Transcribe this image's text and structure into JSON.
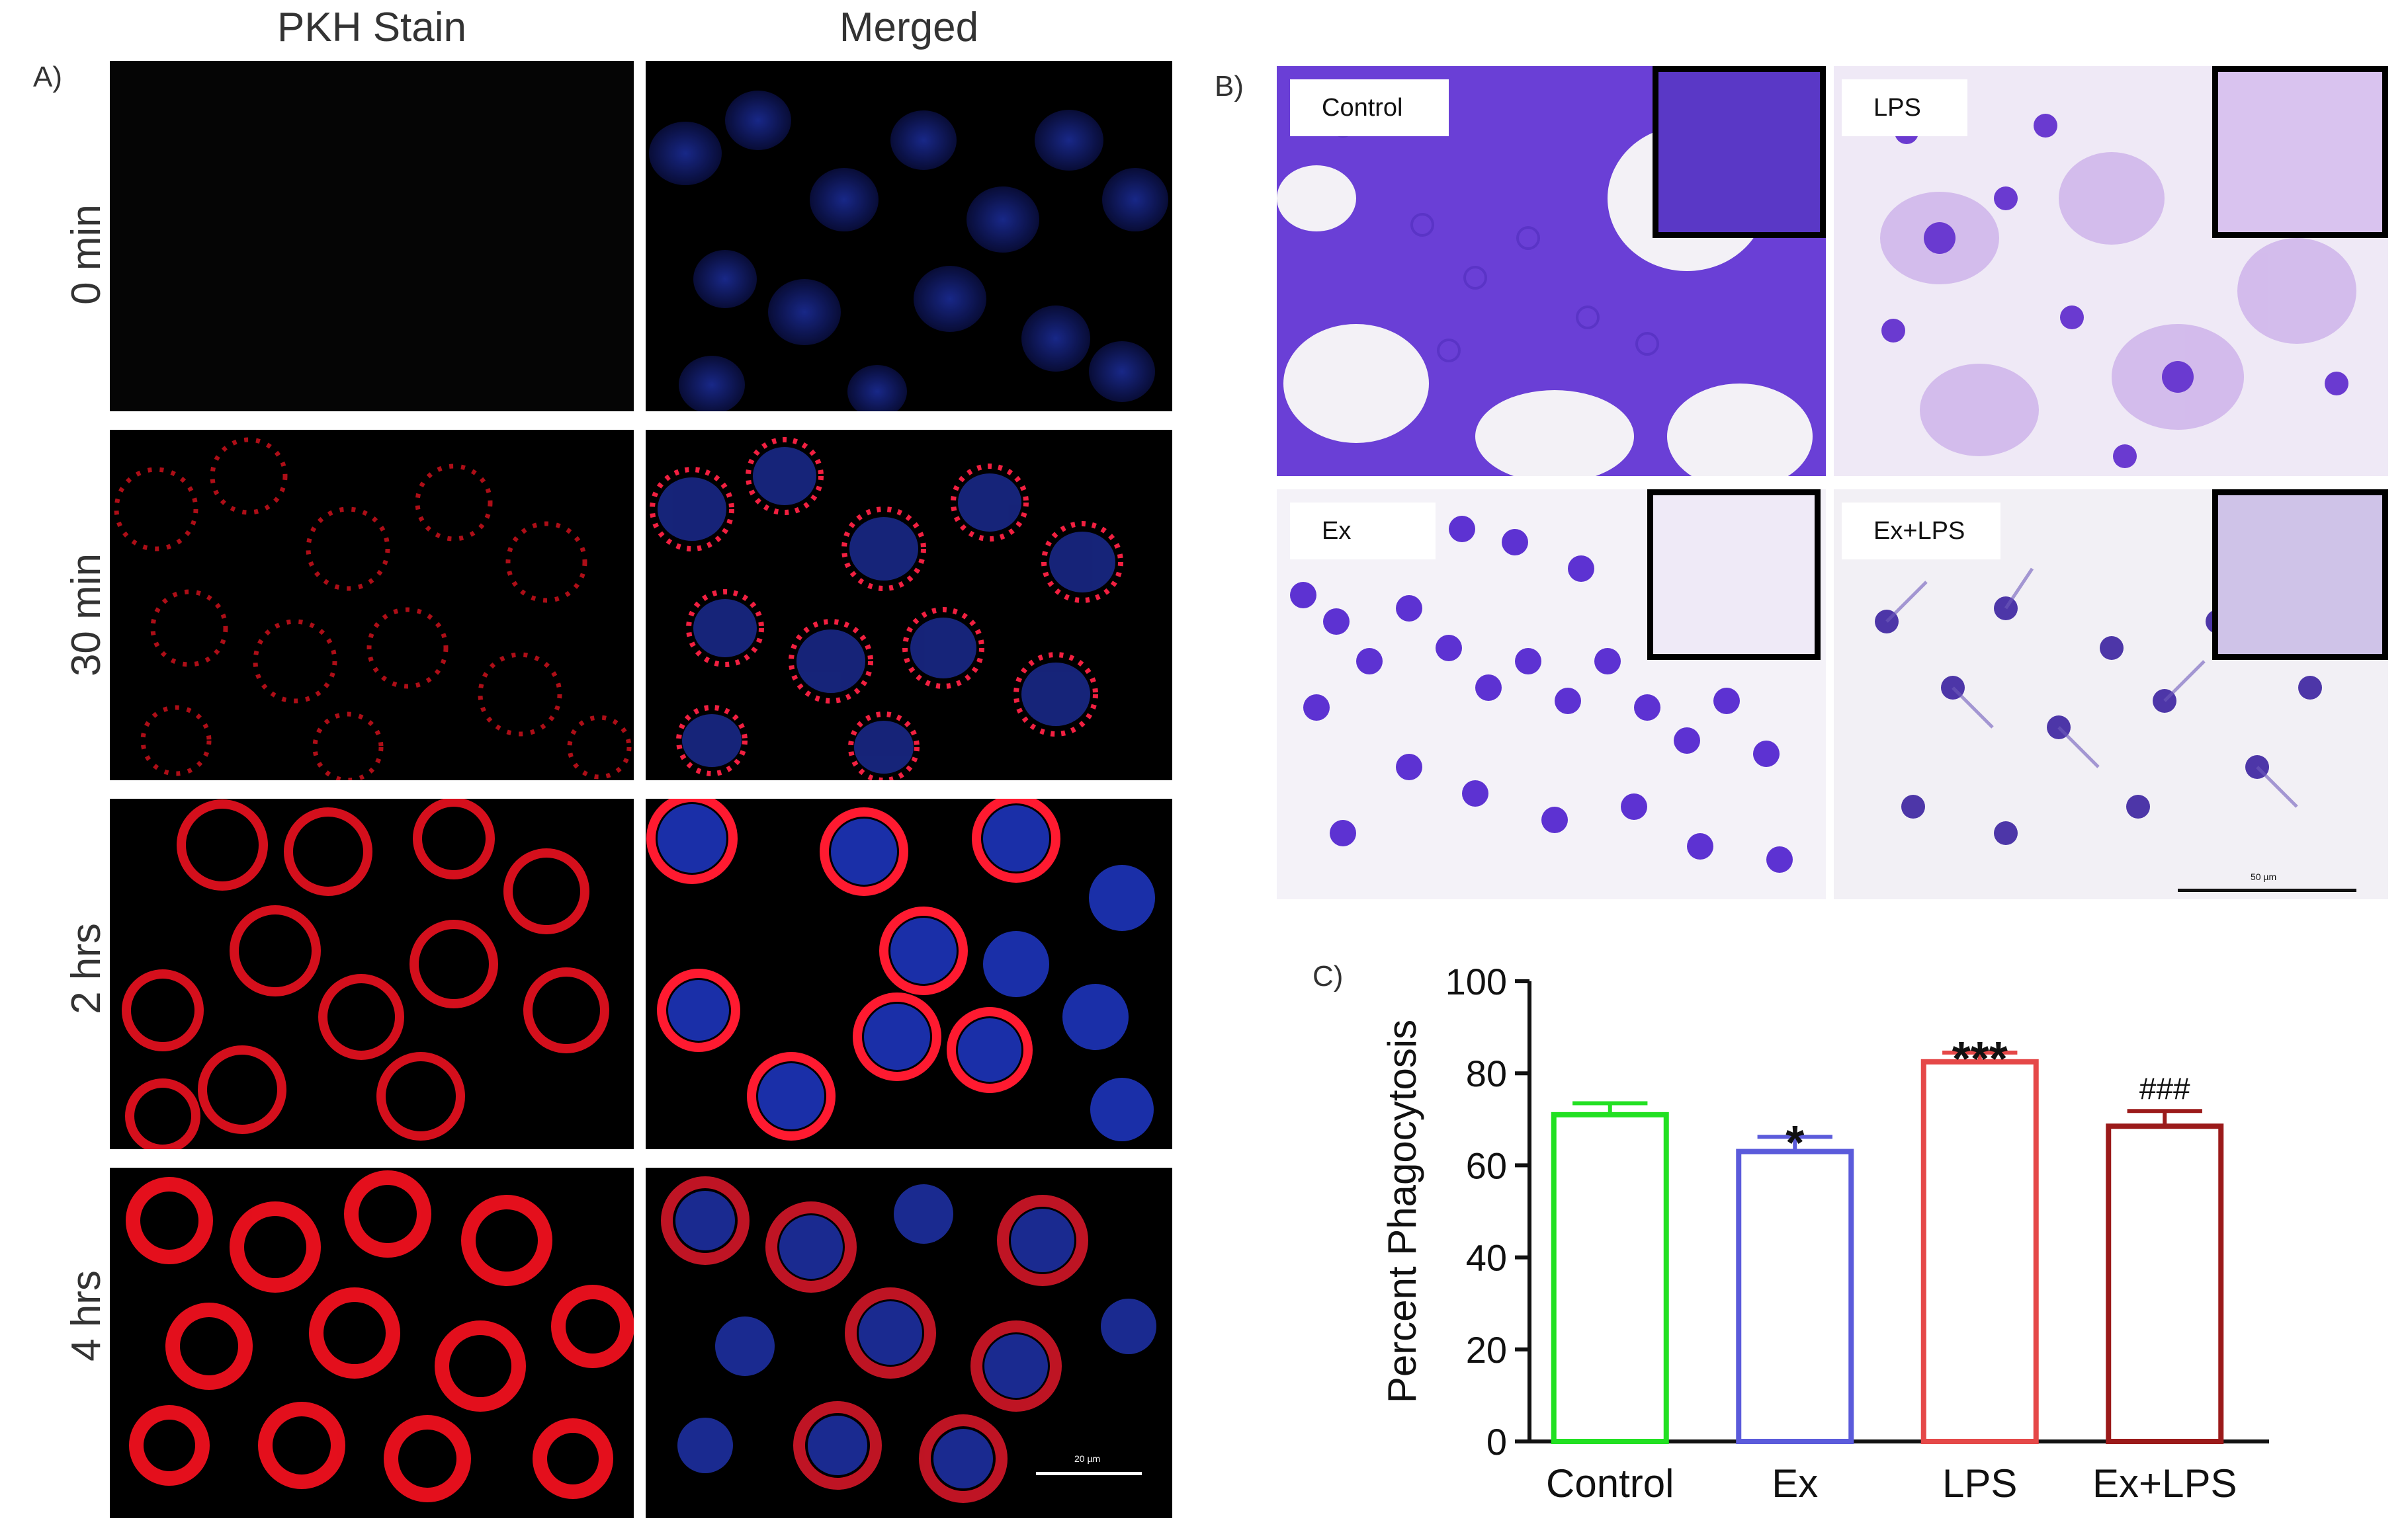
{
  "panelA": {
    "letter": "A)",
    "col_titles": [
      "PKH Stain",
      "Merged"
    ],
    "rows": [
      "0 min",
      "30 min",
      "2 hrs",
      "4 hrs"
    ],
    "scalebar_label": "20 µm"
  },
  "panelB": {
    "letter": "B)",
    "labels": [
      "Control",
      "LPS",
      "Ex",
      "Ex+LPS"
    ],
    "scalebar_label": "50 µm"
  },
  "panelC": {
    "letter": "C)"
  },
  "chart_data": {
    "type": "bar",
    "categories": [
      "Control",
      "Ex",
      "LPS",
      "Ex+LPS"
    ],
    "values": [
      71,
      63,
      82.5,
      68.5
    ],
    "errors": [
      2.5,
      3.2,
      2.0,
      3.3
    ],
    "significance": [
      "",
      "*",
      "***",
      "###"
    ],
    "bar_colors": [
      "#22e022",
      "#5b5bdb",
      "#e54848",
      "#9b1a1a"
    ],
    "ylabel": "Percent Phagocytosis",
    "ylim": [
      0,
      100
    ],
    "yticks": [
      0,
      20,
      40,
      60,
      80,
      100
    ]
  }
}
